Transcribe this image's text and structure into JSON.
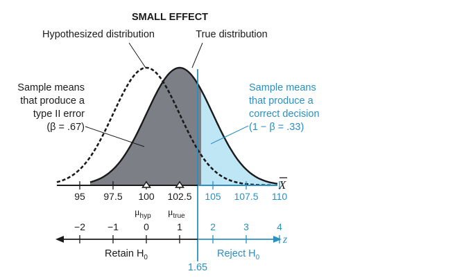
{
  "title": "SMALL EFFECT",
  "labels": {
    "hypothesized": "Hypothesized distribution",
    "true_dist": "True distribution",
    "left_note": [
      "Sample means",
      "that produce a",
      "type II error",
      "(β = .67)"
    ],
    "right_note": [
      "Sample means",
      "that produce a",
      "correct decision",
      "(1 − β = .33)"
    ],
    "xbar": "X",
    "z": "z",
    "retain": "Retain H",
    "retain_sub": "0",
    "reject": "Reject H",
    "reject_sub": "0",
    "critical": "1.65",
    "mu_hyp": "μ",
    "mu_hyp_sub": "hyp",
    "mu_true": "μ",
    "mu_true_sub": "true"
  },
  "x_ticks": [
    "95",
    "97.5",
    "100",
    "102.5",
    "105",
    "107.5",
    "110"
  ],
  "z_ticks": [
    "−2",
    "−1",
    "0",
    "1",
    "2",
    "3",
    "4"
  ],
  "colors": {
    "gray_fill": "#7d7f86",
    "blue_fill": "#bfe6f5",
    "blue_text": "#2b8fc0",
    "ink": "#1a1a1a"
  },
  "chart_data": {
    "type": "area",
    "x_axis_values": [
      95,
      97.5,
      100,
      102.5,
      105,
      107.5,
      110
    ],
    "z_axis_values": [
      -2,
      -1,
      0,
      1,
      2,
      3,
      4
    ],
    "hypothesized_mean": 100,
    "true_mean": 102.5,
    "critical_z": 1.65,
    "beta": 0.67,
    "power": 0.33
  }
}
